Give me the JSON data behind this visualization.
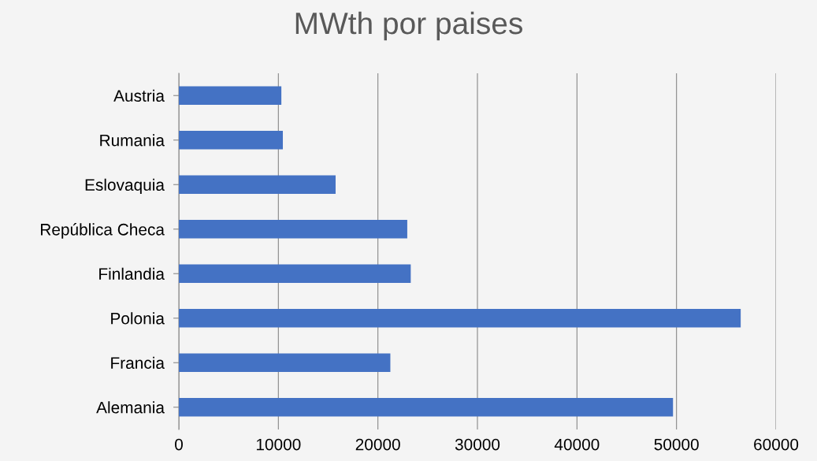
{
  "chart_data": {
    "type": "bar",
    "orientation": "horizontal",
    "title": "MWth por paises",
    "categories": [
      "Austria",
      "Rumania",
      "Eslovaquia",
      "República Checa",
      "Finlandia",
      "Polonia",
      "Francia",
      "Alemania"
    ],
    "values": [
      10300,
      10450,
      15750,
      22950,
      23300,
      56450,
      21250,
      49650
    ],
    "color": "#4472c4",
    "xlim": [
      0,
      60000
    ],
    "xticks": [
      0,
      10000,
      20000,
      30000,
      40000,
      50000,
      60000
    ],
    "grid": "x",
    "legend": false
  }
}
